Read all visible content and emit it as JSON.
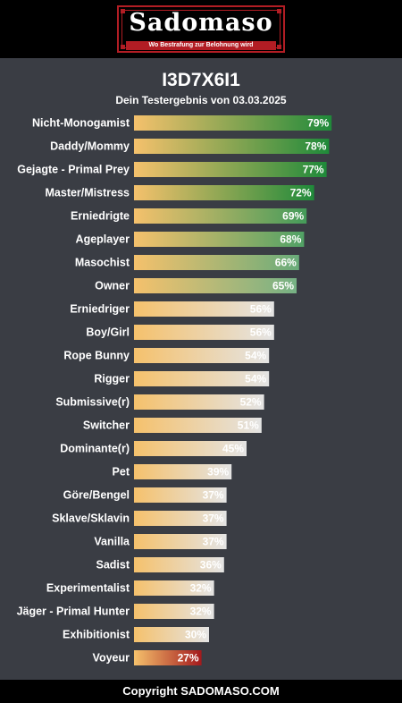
{
  "header": {
    "logo_text": "Sadomaso",
    "tagline": "Wo Bestrafung zur Belohnung wird"
  },
  "title": "I3D7X6I1",
  "subtitle": "Dein Testergebnis von 03.03.2025",
  "footer": "Copyright SADOMASO.COM",
  "colors": {
    "background": "#3a3d44",
    "bar_start": "#f5c16c",
    "high_end": "#1f8a3a",
    "mid_end": "#e4e4e4",
    "low_end": "#a3191d"
  },
  "chart_data": {
    "type": "bar",
    "orientation": "horizontal",
    "xlim": [
      0,
      100
    ],
    "categories": [
      "Nicht-Monogamist",
      "Daddy/Mommy",
      "Gejagte - Primal Prey",
      "Master/Mistress",
      "Erniedrigte",
      "Ageplayer",
      "Masochist",
      "Owner",
      "Erniedriger",
      "Boy/Girl",
      "Rope Bunny",
      "Rigger",
      "Submissive(r)",
      "Switcher",
      "Dominante(r)",
      "Pet",
      "Göre/Bengel",
      "Sklave/Sklavin",
      "Vanilla",
      "Sadist",
      "Experimentalist",
      "Jäger - Primal Hunter",
      "Exhibitionist",
      "Voyeur"
    ],
    "values": [
      79,
      78,
      77,
      72,
      69,
      68,
      66,
      65,
      56,
      56,
      54,
      54,
      52,
      51,
      45,
      39,
      37,
      37,
      37,
      36,
      32,
      32,
      30,
      27
    ],
    "value_labels": [
      "79%",
      "78%",
      "77%",
      "72%",
      "69%",
      "68%",
      "66%",
      "65%",
      "56%",
      "56%",
      "54%",
      "54%",
      "52%",
      "51%",
      "45%",
      "39%",
      "37%",
      "37%",
      "37%",
      "36%",
      "32%",
      "32%",
      "30%",
      "27%"
    ]
  }
}
